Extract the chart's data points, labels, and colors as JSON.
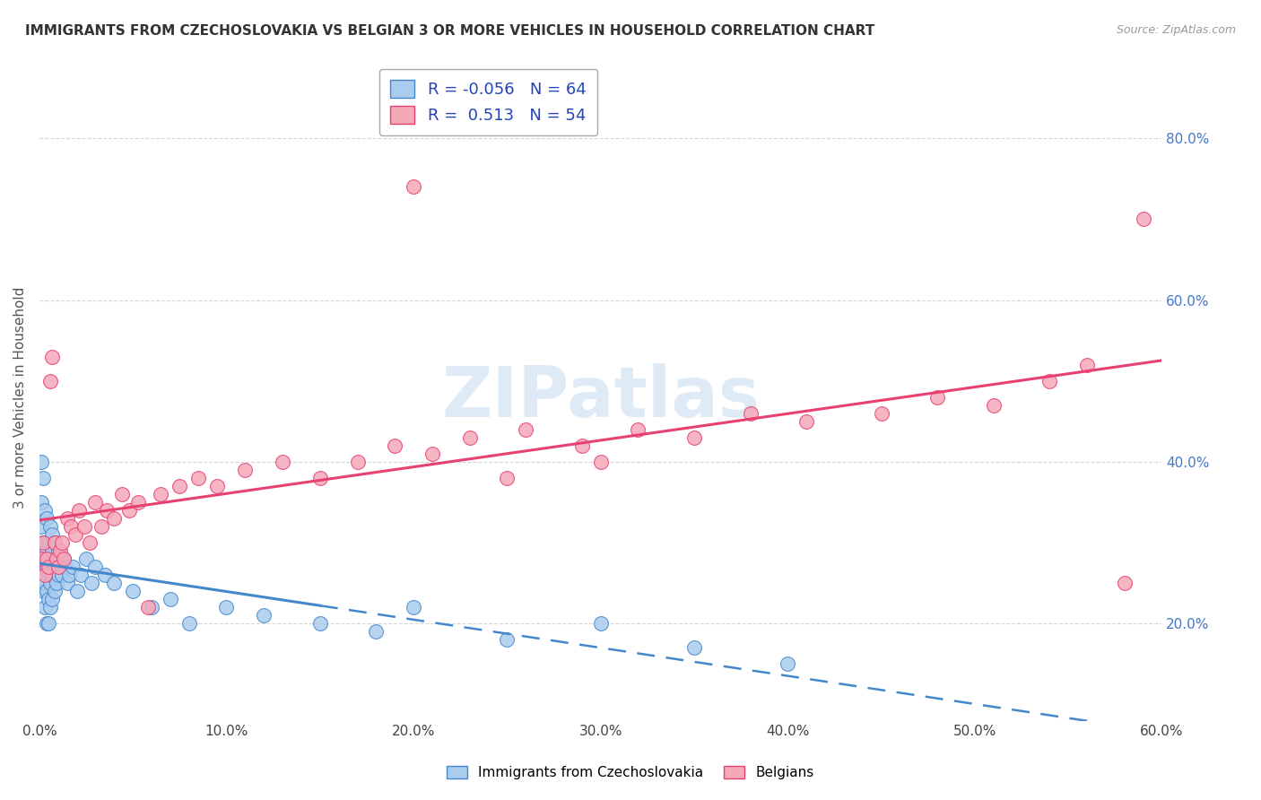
{
  "title": "IMMIGRANTS FROM CZECHOSLOVAKIA VS BELGIAN 3 OR MORE VEHICLES IN HOUSEHOLD CORRELATION CHART",
  "source": "Source: ZipAtlas.com",
  "ylabel": "3 or more Vehicles in Household",
  "legend_label_blue": "Immigrants from Czechoslovakia",
  "legend_label_pink": "Belgians",
  "R_blue": -0.056,
  "N_blue": 64,
  "R_pink": 0.513,
  "N_pink": 54,
  "xlim": [
    0.0,
    0.6
  ],
  "ylim": [
    0.08,
    0.88
  ],
  "xticks": [
    0.0,
    0.1,
    0.2,
    0.3,
    0.4,
    0.5,
    0.6
  ],
  "yticks_right": [
    0.2,
    0.4,
    0.6,
    0.8
  ],
  "color_blue": "#aaccee",
  "color_pink": "#f5a8b8",
  "line_color_blue": "#4488cc",
  "line_color_pink": "#e84070",
  "watermark": "ZIPatlas",
  "watermark_color": "#c8dff0",
  "background_color": "#ffffff",
  "blue_x": [
    0.001,
    0.001,
    0.001,
    0.001,
    0.002,
    0.002,
    0.002,
    0.002,
    0.003,
    0.003,
    0.003,
    0.003,
    0.003,
    0.004,
    0.004,
    0.004,
    0.004,
    0.004,
    0.005,
    0.005,
    0.005,
    0.005,
    0.006,
    0.006,
    0.006,
    0.006,
    0.007,
    0.007,
    0.007,
    0.007,
    0.008,
    0.008,
    0.008,
    0.009,
    0.009,
    0.01,
    0.01,
    0.011,
    0.012,
    0.013,
    0.014,
    0.015,
    0.016,
    0.018,
    0.02,
    0.022,
    0.025,
    0.028,
    0.03,
    0.035,
    0.04,
    0.05,
    0.06,
    0.07,
    0.08,
    0.1,
    0.12,
    0.15,
    0.18,
    0.2,
    0.25,
    0.3,
    0.35,
    0.4
  ],
  "blue_y": [
    0.27,
    0.32,
    0.35,
    0.4,
    0.24,
    0.28,
    0.3,
    0.38,
    0.22,
    0.25,
    0.28,
    0.3,
    0.34,
    0.2,
    0.24,
    0.27,
    0.29,
    0.33,
    0.2,
    0.23,
    0.26,
    0.3,
    0.22,
    0.25,
    0.28,
    0.32,
    0.23,
    0.26,
    0.29,
    0.31,
    0.24,
    0.27,
    0.3,
    0.25,
    0.28,
    0.26,
    0.29,
    0.27,
    0.26,
    0.28,
    0.27,
    0.25,
    0.26,
    0.27,
    0.24,
    0.26,
    0.28,
    0.25,
    0.27,
    0.26,
    0.25,
    0.24,
    0.22,
    0.23,
    0.2,
    0.22,
    0.21,
    0.2,
    0.19,
    0.22,
    0.18,
    0.2,
    0.17,
    0.15
  ],
  "pink_x": [
    0.001,
    0.002,
    0.003,
    0.004,
    0.005,
    0.006,
    0.007,
    0.008,
    0.009,
    0.01,
    0.011,
    0.012,
    0.013,
    0.015,
    0.017,
    0.019,
    0.021,
    0.024,
    0.027,
    0.03,
    0.033,
    0.036,
    0.04,
    0.044,
    0.048,
    0.053,
    0.058,
    0.065,
    0.075,
    0.085,
    0.095,
    0.11,
    0.13,
    0.15,
    0.17,
    0.19,
    0.21,
    0.23,
    0.26,
    0.29,
    0.32,
    0.35,
    0.38,
    0.41,
    0.45,
    0.48,
    0.51,
    0.54,
    0.56,
    0.58,
    0.59,
    0.2,
    0.25,
    0.3
  ],
  "pink_y": [
    0.28,
    0.3,
    0.26,
    0.28,
    0.27,
    0.5,
    0.53,
    0.3,
    0.28,
    0.27,
    0.29,
    0.3,
    0.28,
    0.33,
    0.32,
    0.31,
    0.34,
    0.32,
    0.3,
    0.35,
    0.32,
    0.34,
    0.33,
    0.36,
    0.34,
    0.35,
    0.22,
    0.36,
    0.37,
    0.38,
    0.37,
    0.39,
    0.4,
    0.38,
    0.4,
    0.42,
    0.41,
    0.43,
    0.44,
    0.42,
    0.44,
    0.43,
    0.46,
    0.45,
    0.46,
    0.48,
    0.47,
    0.5,
    0.52,
    0.25,
    0.7,
    0.74,
    0.38,
    0.4
  ]
}
